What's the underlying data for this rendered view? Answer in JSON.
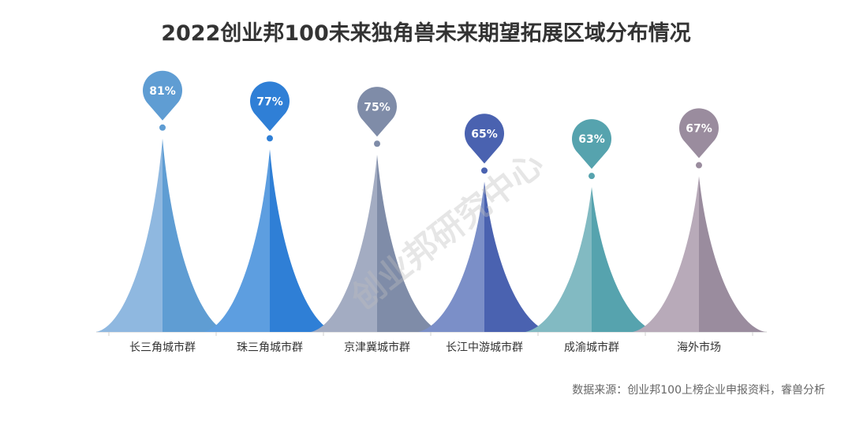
{
  "chart_data": {
    "type": "bar",
    "title": "2022创业邦100未来独角兽未来期望拓展区域分布情况",
    "categories": [
      "长三角城市群",
      "珠三角城市群",
      "京津冀城市群",
      "长江中游城市群",
      "成渝城市群",
      "海外市场"
    ],
    "values": [
      81,
      77,
      75,
      65,
      63,
      67
    ],
    "value_labels": [
      "81%",
      "77%",
      "75%",
      "65%",
      "63%",
      "67%"
    ],
    "unit": "%",
    "ylim": [
      0,
      100
    ],
    "grid": false,
    "legend": "none"
  },
  "colors": [
    {
      "light": "#8fb8e0",
      "dark": "#5f9dd3"
    },
    {
      "light": "#5d9ee0",
      "dark": "#2f7fd6"
    },
    {
      "light": "#a3acc2",
      "dark": "#7f8ca8"
    },
    {
      "light": "#7b8fc8",
      "dark": "#4a62b0"
    },
    {
      "light": "#82bac2",
      "dark": "#56a3ae"
    },
    {
      "light": "#b8aab9",
      "dark": "#9a8c9e"
    }
  ],
  "source": "数据来源：创业邦100上榜企业申报资料，睿兽分析",
  "watermark": "创业邦研究中心"
}
